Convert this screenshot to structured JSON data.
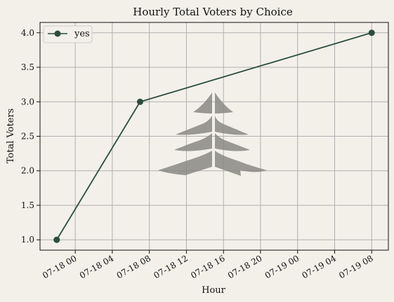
{
  "chart_data": {
    "type": "line",
    "title": "Hourly Total Voters by Choice",
    "xlabel": "Hour",
    "ylabel": "Total Voters",
    "grid": true,
    "legend_position": "top-left",
    "x_tick_labels": [
      "07-18 00",
      "07-18 04",
      "07-18 08",
      "07-18 12",
      "07-18 16",
      "07-18 20",
      "07-19 00",
      "07-19 04",
      "07-19 08"
    ],
    "x_tick_hours": [
      0,
      4,
      8,
      12,
      16,
      20,
      24,
      28,
      32
    ],
    "xlim_hours": [
      -3.8,
      33.8
    ],
    "y_ticks": [
      "1.0",
      "1.5",
      "2.0",
      "2.5",
      "3.0",
      "3.5",
      "4.0"
    ],
    "ylim": [
      0.85,
      4.15
    ],
    "series": [
      {
        "name": "yes",
        "color": "#2c4d3c",
        "x_hours": [
          -2,
          7,
          32
        ],
        "values": [
          1,
          3,
          4
        ]
      }
    ]
  },
  "watermark": {
    "icon": "pine-tree-icon",
    "color": "#8a8985"
  }
}
